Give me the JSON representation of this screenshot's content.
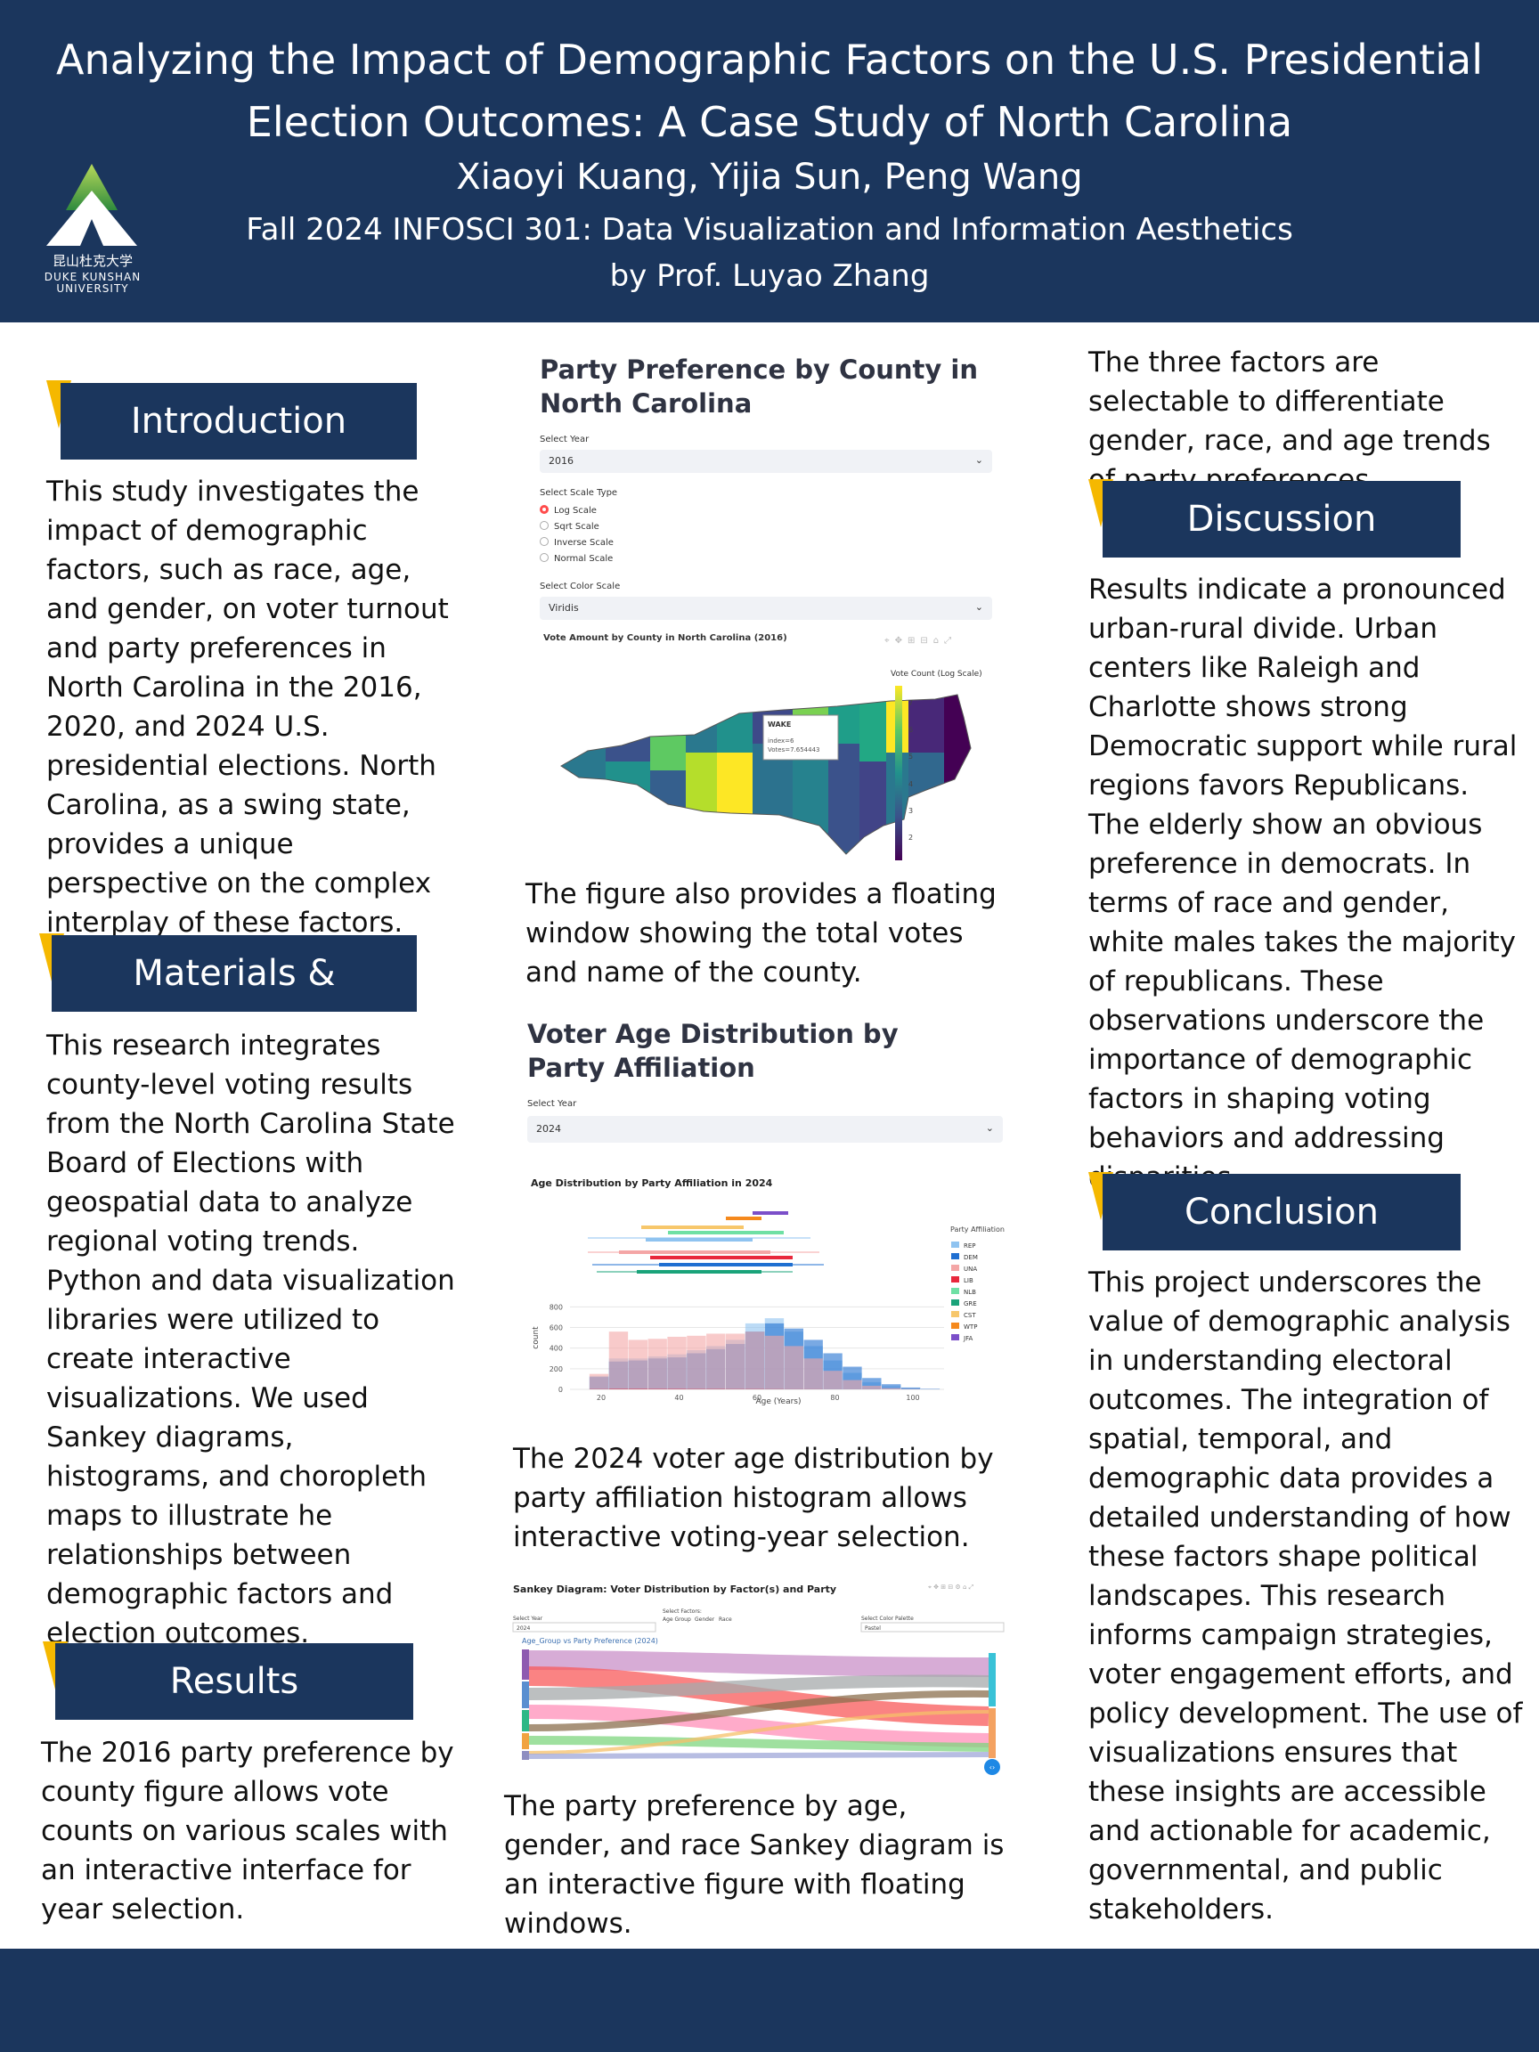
{
  "header": {
    "title_line1": "Analyzing the Impact of Demographic Factors on the U.S. Presidential",
    "title_line2": "Election Outcomes: A Case Study of North Carolina",
    "authors": "Xiaoyi Kuang, Yijia Sun, Peng Wang",
    "course_line1": "Fall 2024 INFOSCI 301: Data Visualization and Information Aesthetics",
    "course_line2": "by Prof. Luyao Zhang",
    "logo_cn": "昆山杜克大学",
    "logo_en_line1": "DUKE KUNSHAN",
    "logo_en_line2": "UNIVERSITY"
  },
  "introduction": {
    "heading": "Introduction",
    "text": "This study investigates the impact of demographic factors, such as race, age, and gender, on voter turnout and party preferences in North Carolina in the 2016, 2020, and 2024 U.S. presidential elections. North Carolina, as a swing state, provides a unique perspective on the complex interplay of these factors."
  },
  "methods": {
    "heading": "Materials & Methods",
    "text": "This research integrates county-level voting results from the North Carolina State Board of Elections with geospatial data to analyze regional voting trends. Python and data visualization libraries were utilized to create interactive visualizations. We used Sankey diagrams, histograms, and choropleth maps to illustrate he relationships between demographic factors and election outcomes."
  },
  "results": {
    "heading": "Results",
    "text": "The 2016 party preference by county figure allows vote counts on various scales with an interactive interface for year selection."
  },
  "figure1": {
    "title": "Party Preference by County in North Carolina",
    "select_year_label": "Select Year",
    "select_year_value": "2016",
    "scale_label": "Select Scale Type",
    "scale_options": [
      "Log Scale",
      "Sqrt Scale",
      "Inverse Scale",
      "Normal Scale"
    ],
    "color_label": "Select Color Scale",
    "color_value": "Viridis",
    "chart_title": "Vote Amount by County in North Carolina (2016)",
    "colorbar_title": "Vote Count (Log Scale)",
    "colorbar_ticks": [
      "7",
      "6",
      "5",
      "4",
      "3",
      "2"
    ],
    "tooltip_name": "WAKE",
    "tooltip_index": "index=6",
    "tooltip_votes": "Votes=7.654443",
    "caption": "The figure also provides a floating window showing the total votes and name of the county."
  },
  "figure2": {
    "title": "Voter Age Distribution by Party Affiliation",
    "select_year_label": "Select Year",
    "select_year_value": "2024",
    "caption": "The 2024 voter age distribution by party affiliation histogram allows interactive voting-year selection."
  },
  "chart_data": {
    "type": "bar",
    "title": "Age Distribution by Party Affiliation in 2024",
    "xlabel": "Age (Years)",
    "ylabel": "count",
    "xlim": [
      12,
      108
    ],
    "ylim": [
      0,
      950
    ],
    "x_ticks": [
      20,
      40,
      60,
      80,
      100
    ],
    "y_ticks": [
      0,
      200,
      400,
      600,
      800
    ],
    "legend_title": "Party Affiliation",
    "legend_position": "right",
    "bin_starts": [
      17,
      22,
      27,
      32,
      37,
      42,
      47,
      52,
      57,
      62,
      67,
      72,
      77,
      82,
      87,
      92,
      97,
      102
    ],
    "bin_width": 5,
    "series": [
      {
        "name": "REP",
        "color": "#8fc3f0",
        "values": [
          130,
          300,
          300,
          320,
          340,
          380,
          420,
          480,
          640,
          690,
          560,
          420,
          280,
          160,
          70,
          30,
          12,
          4
        ]
      },
      {
        "name": "DEM",
        "color": "#1f6fd1",
        "values": [
          120,
          270,
          280,
          300,
          310,
          350,
          390,
          440,
          560,
          640,
          590,
          480,
          350,
          220,
          110,
          50,
          18,
          5
        ]
      },
      {
        "name": "UNA",
        "color": "#f4a6a6",
        "values": [
          150,
          560,
          480,
          490,
          510,
          520,
          540,
          540,
          560,
          520,
          420,
          300,
          180,
          90,
          35,
          12,
          4,
          1
        ]
      },
      {
        "name": "LIB",
        "color": "#e8283c",
        "values": [
          3,
          6,
          6,
          5,
          5,
          4,
          4,
          3,
          3,
          2,
          1,
          1,
          0,
          0,
          0,
          0,
          0,
          0
        ]
      }
    ],
    "legend": [
      {
        "name": "REP",
        "color": "#8fc3f0"
      },
      {
        "name": "DEM",
        "color": "#1f6fd1"
      },
      {
        "name": "UNA",
        "color": "#f4a6a6"
      },
      {
        "name": "LIB",
        "color": "#e8283c"
      },
      {
        "name": "NLB",
        "color": "#6fe0a4"
      },
      {
        "name": "GRE",
        "color": "#1aa37a"
      },
      {
        "name": "CST",
        "color": "#f7c76b"
      },
      {
        "name": "WTP",
        "color": "#f5891d"
      },
      {
        "name": "JFA",
        "color": "#7b4fc9"
      }
    ]
  },
  "figure3": {
    "chart_title": "Sankey Diagram: Voter Distribution by Factor(s) and Party",
    "select_year_label": "Select Year",
    "select_year_value": "2024",
    "select_factors_label": "Select Factors:",
    "factor_options": [
      "Age Group",
      "Gender",
      "Race"
    ],
    "color_palette_label": "Select Color Palette",
    "color_palette_value": "Pastel",
    "sankey_label": "Age_Group vs Party Preference (2024)",
    "caption": "The party preference by age, gender, and race Sankey diagram is an interactive figure with floating windows."
  },
  "column3_intro": {
    "text": "The three factors are selectable to differentiate gender, race, and age trends of party preferences."
  },
  "discussion": {
    "heading": "Discussion",
    "text": "Results indicate a pronounced urban-rural divide. Urban centers like Raleigh and Charlotte shows strong Democratic support while rural regions favors Republicans. The elderly show an obvious preference in democrats. In terms of race and gender, white males takes the majority of republicans. These observations underscore the importance of demographic factors in shaping voting behaviors and addressing disparities."
  },
  "conclusion": {
    "heading": "Conclusion",
    "text": "This project underscores the value of demographic analysis in understanding electoral outcomes. The integration of spatial, temporal, and demographic data provides a detailed understanding of how these factors shape political landscapes. This research informs campaign strategies, voter engagement efforts, and policy development. The use of visualizations ensures that these insights are accessible and actionable for academic, governmental, and public stakeholders."
  },
  "colors": {
    "navy": "#1b365d",
    "accent": "#f5b800"
  }
}
